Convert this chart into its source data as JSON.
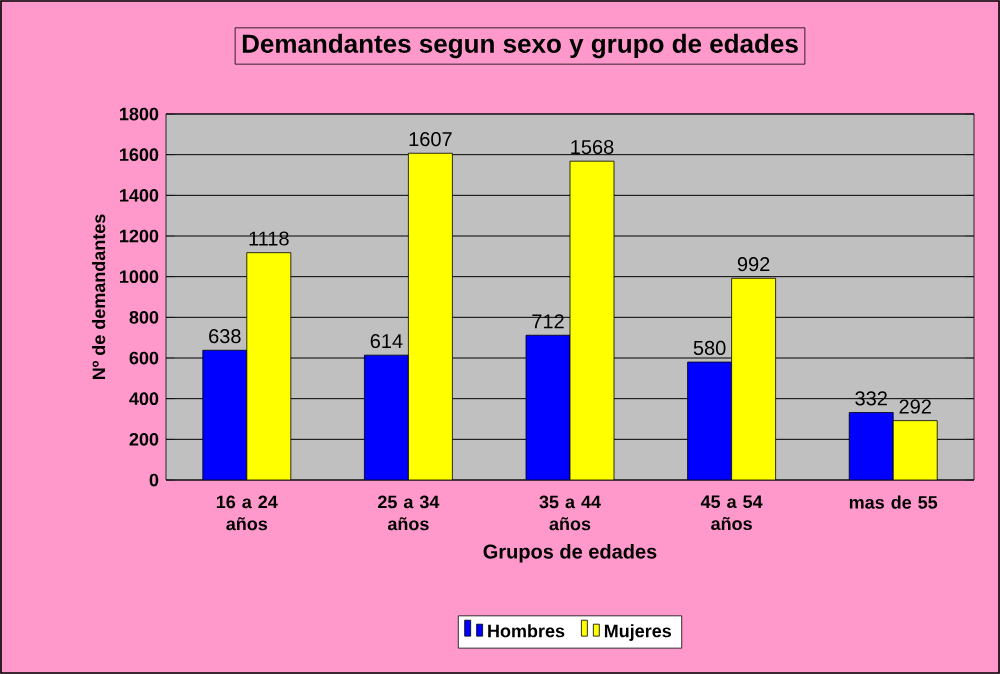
{
  "chart_data": {
    "type": "bar",
    "title": "Demandantes segun sexo y grupo de edades",
    "xlabel": "Grupos de edades",
    "ylabel": "Nº de demandantes",
    "categories": [
      "16 a 24 años",
      "25 a 34 años",
      "35 a 44 años",
      "45 a 54 años",
      "mas de 55"
    ],
    "series": [
      {
        "name": "Hombres",
        "color": "#0000ff",
        "values": [
          638,
          614,
          712,
          580,
          332
        ]
      },
      {
        "name": "Mujeres",
        "color": "#ffff00",
        "values": [
          1118,
          1607,
          1568,
          992,
          292
        ]
      }
    ],
    "ylim": [
      0,
      1800
    ],
    "yticks": [
      0,
      200,
      400,
      600,
      800,
      1000,
      1200,
      1400,
      1600,
      1800
    ],
    "grid": "y",
    "legend": "bottom",
    "data_labels": true
  }
}
